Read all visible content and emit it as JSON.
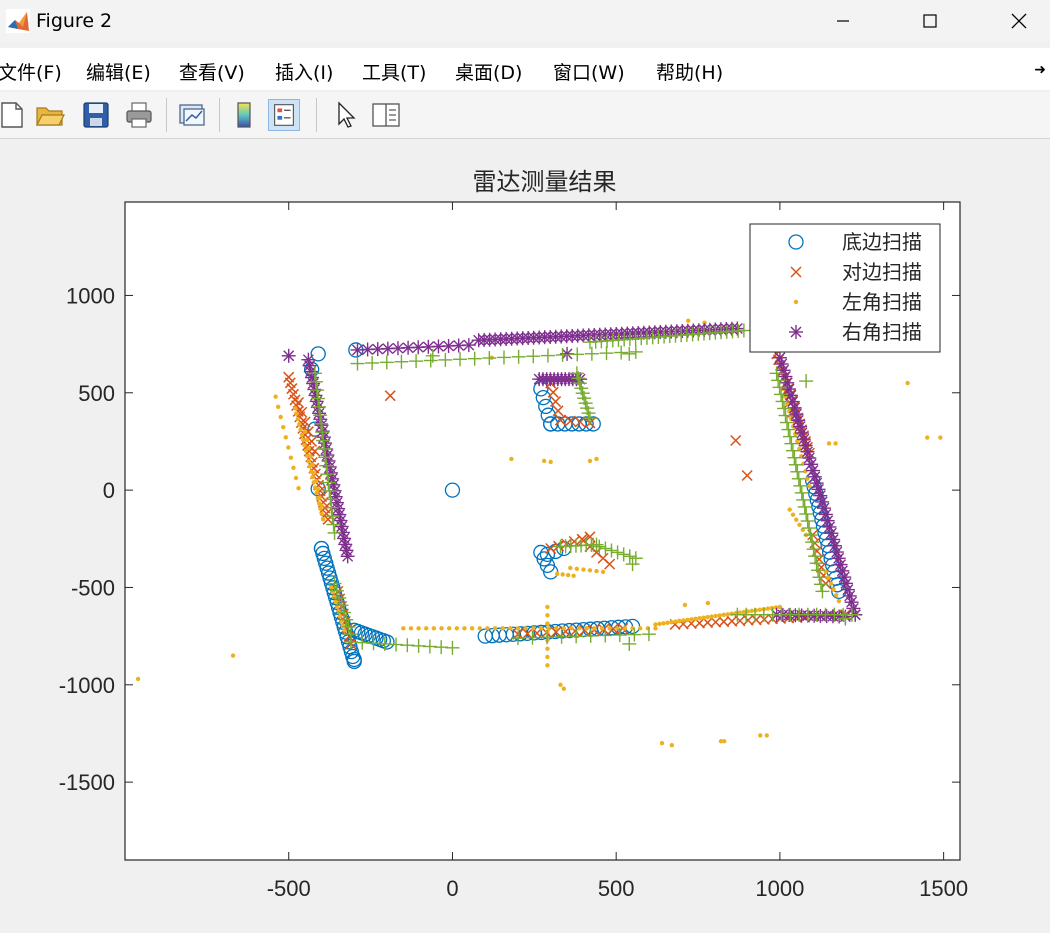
{
  "window": {
    "title": "Figure 2",
    "controls": [
      "minimize",
      "maximize",
      "close"
    ]
  },
  "menu": {
    "items": [
      "文件(F)",
      "编辑(E)",
      "查看(V)",
      "插入(I)",
      "工具(T)",
      "桌面(D)",
      "窗口(W)",
      "帮助(H)"
    ],
    "overflow_icon": "pin-arrow-icon"
  },
  "toolbar": {
    "buttons": [
      {
        "name": "new-figure",
        "icon": "new-file-icon"
      },
      {
        "name": "open-file",
        "icon": "folder-open-icon"
      },
      {
        "name": "save-figure",
        "icon": "floppy-disk-icon"
      },
      {
        "name": "print-figure",
        "icon": "printer-icon"
      },
      {
        "name": "link-plot",
        "icon": "link-plot-icon"
      },
      {
        "name": "insert-colorbar",
        "icon": "colorbar-icon"
      },
      {
        "name": "insert-legend",
        "icon": "legend-icon",
        "active": true
      },
      {
        "name": "edit-plot",
        "icon": "pointer-arrow-icon"
      },
      {
        "name": "property-inspector",
        "icon": "property-panel-icon"
      }
    ]
  },
  "chart_data": {
    "type": "scatter",
    "title": "雷达测量结果",
    "xlabel": "",
    "ylabel": "",
    "xlim": [
      -1000,
      1550
    ],
    "ylim": [
      -1900,
      1480
    ],
    "xticks": [
      -500,
      0,
      500,
      1000,
      1500
    ],
    "yticks": [
      1000,
      500,
      0,
      -500,
      -1000,
      -1500
    ],
    "grid": false,
    "legend_position": "top-right",
    "colors": {
      "axis": "#262626",
      "plot_bg": "#ffffff",
      "figure_bg": "#f0f0f0"
    },
    "series": [
      {
        "name": "底边扫描",
        "marker": "circle",
        "color": "#0072BD",
        "segments": [
          {
            "from": [
              -300,
              -880
            ],
            "to": [
              -400,
              -300
            ],
            "n": 24
          },
          {
            "from": [
              -400,
              -300
            ],
            "to": [
              -430,
              620
            ],
            "n": 4
          },
          {
            "from": [
              -300,
              -720
            ],
            "to": [
              -200,
              -780
            ],
            "n": 10
          },
          {
            "from": [
              100,
              -750
            ],
            "to": [
              550,
              -700
            ],
            "n": 22
          },
          {
            "from": [
              270,
              520
            ],
            "to": [
              300,
              340
            ],
            "n": 5
          },
          {
            "from": [
              300,
              340
            ],
            "to": [
              430,
              340
            ],
            "n": 7
          },
          {
            "from": [
              270,
              -320
            ],
            "to": [
              300,
              -420
            ],
            "n": 4
          },
          {
            "from": [
              290,
              -330
            ],
            "to": [
              340,
              -300
            ],
            "n": 3
          },
          {
            "from": [
              1100,
              50
            ],
            "to": [
              1180,
              -520
            ],
            "n": 18
          }
        ],
        "points": [
          [
            -410,
            700
          ],
          [
            -295,
            720
          ],
          [
            0,
            0
          ],
          [
            -300,
            -870
          ]
        ]
      },
      {
        "name": "对边扫描",
        "marker": "x",
        "color": "#D95319",
        "segments": [
          {
            "from": [
              -500,
              580
            ],
            "to": [
              -380,
              -150
            ],
            "n": 26
          },
          {
            "from": [
              -470,
              450
            ],
            "to": [
              -420,
              200
            ],
            "n": 6
          },
          {
            "from": [
              -350,
              -520
            ],
            "to": [
              -310,
              -790
            ],
            "n": 8
          },
          {
            "from": [
              200,
              -740
            ],
            "to": [
              520,
              -710
            ],
            "n": 12
          },
          {
            "from": [
              300,
              550
            ],
            "to": [
              330,
              360
            ],
            "n": 5
          },
          {
            "from": [
              330,
              360
            ],
            "to": [
              420,
              345
            ],
            "n": 4
          },
          {
            "from": [
              300,
              -300
            ],
            "to": [
              420,
              -240
            ],
            "n": 6
          },
          {
            "from": [
              400,
              -260
            ],
            "to": [
              480,
              -380
            ],
            "n": 5
          },
          {
            "from": [
              680,
              -690
            ],
            "to": [
              1200,
              -640
            ],
            "n": 22
          },
          {
            "from": [
              990,
              700
            ],
            "to": [
              1090,
              190
            ],
            "n": 18
          },
          {
            "from": [
              1020,
              500
            ],
            "to": [
              1060,
              300
            ],
            "n": 5
          },
          {
            "from": [
              1100,
              -230
            ],
            "to": [
              1140,
              -480
            ],
            "n": 7
          }
        ],
        "points": [
          [
            -190,
            485
          ],
          [
            865,
            255
          ],
          [
            900,
            75
          ]
        ]
      },
      {
        "name": "左角扫描",
        "marker": "dot",
        "color": "#EDB120",
        "segments": [
          {
            "from": [
              -540,
              480
            ],
            "to": [
              -470,
              10
            ],
            "n": 10
          },
          {
            "from": [
              -480,
              420
            ],
            "to": [
              -395,
              -150
            ],
            "n": 22
          },
          {
            "from": [
              -450,
              300
            ],
            "to": [
              -400,
              -80
            ],
            "n": 10
          },
          {
            "from": [
              -370,
              -500
            ],
            "to": [
              -330,
              -720
            ],
            "n": 10
          },
          {
            "from": [
              -150,
              -710
            ],
            "to": [
              620,
              -710
            ],
            "n": 34
          },
          {
            "from": [
              620,
              -690
            ],
            "to": [
              1000,
              -600
            ],
            "n": 32
          },
          {
            "from": [
              290,
              -600
            ],
            "to": [
              290,
              -900
            ],
            "n": 8
          },
          {
            "from": [
              360,
              -400
            ],
            "to": [
              460,
              -420
            ],
            "n": 6
          },
          {
            "from": [
              320,
              -430
            ],
            "to": [
              370,
              -440
            ],
            "n": 4
          },
          {
            "from": [
              1010,
              520
            ],
            "to": [
              1090,
              20
            ],
            "n": 14
          },
          {
            "from": [
              1030,
              -100
            ],
            "to": [
              1080,
              -230
            ],
            "n": 6
          },
          {
            "from": [
              1140,
              -420
            ],
            "to": [
              1180,
              -570
            ],
            "n": 6
          }
        ],
        "points": [
          [
            -960,
            -970
          ],
          [
            -670,
            -850
          ],
          [
            280,
            150
          ],
          [
            300,
            145
          ],
          [
            420,
            150
          ],
          [
            440,
            160
          ],
          [
            330,
            -1000
          ],
          [
            340,
            -1020
          ],
          [
            640,
            -1300
          ],
          [
            670,
            -1310
          ],
          [
            820,
            -1290
          ],
          [
            830,
            -1290
          ],
          [
            940,
            -1260
          ],
          [
            960,
            -1260
          ],
          [
            1390,
            550
          ],
          [
            1450,
            270
          ],
          [
            1490,
            270
          ],
          [
            770,
            820
          ],
          [
            720,
            870
          ],
          [
            770,
            860
          ],
          [
            710,
            -590
          ],
          [
            780,
            -580
          ],
          [
            1110,
            760
          ],
          [
            1150,
            240
          ],
          [
            1170,
            240
          ],
          [
            120,
            680
          ],
          [
            180,
            160
          ]
        ]
      },
      {
        "name": "右角扫描",
        "marker": "asterisk",
        "color": "#7E2F8E",
        "segments": [
          {
            "from": [
              -290,
              720
            ],
            "to": [
              50,
              745
            ],
            "n": 12
          },
          {
            "from": [
              80,
              770
            ],
            "to": [
              870,
              830
            ],
            "n": 48
          },
          {
            "from": [
              -440,
              670
            ],
            "to": [
              -320,
              -340
            ],
            "n": 34
          },
          {
            "from": [
              265,
              570
            ],
            "to": [
              390,
              570
            ],
            "n": 12
          },
          {
            "from": [
              1000,
              680
            ],
            "to": [
              1230,
              -640
            ],
            "n": 42
          },
          {
            "from": [
              990,
              -640
            ],
            "to": [
              1200,
              -650
            ],
            "n": 12
          }
        ],
        "points": [
          [
            -500,
            690
          ],
          [
            350,
            700
          ],
          [
            1230,
            -640
          ]
        ]
      },
      {
        "name": "",
        "marker": "plus",
        "color": "#77AC30",
        "segments": [
          {
            "from": [
              -290,
              650
            ],
            "to": [
              560,
              710
            ],
            "n": 20
          },
          {
            "from": [
              420,
              760
            ],
            "to": [
              890,
              820
            ],
            "n": 28
          },
          {
            "from": [
              -420,
              600
            ],
            "to": [
              -360,
              -220
            ],
            "n": 20
          },
          {
            "from": [
              -360,
              -480
            ],
            "to": [
              -310,
              -740
            ],
            "n": 8
          },
          {
            "from": [
              -310,
              -780
            ],
            "to": [
              0,
              -810
            ],
            "n": 10
          },
          {
            "from": [
              380,
              600
            ],
            "to": [
              420,
              370
            ],
            "n": 10
          },
          {
            "from": [
              330,
              -290
            ],
            "to": [
              440,
              -280
            ],
            "n": 8
          },
          {
            "from": [
              430,
              -280
            ],
            "to": [
              560,
              -350
            ],
            "n": 8
          },
          {
            "from": [
              990,
              600
            ],
            "to": [
              1130,
              -520
            ],
            "n": 32
          },
          {
            "from": [
              870,
              -640
            ],
            "to": [
              1220,
              -640
            ],
            "n": 14
          },
          {
            "from": [
              200,
              -760
            ],
            "to": [
              600,
              -740
            ],
            "n": 10
          }
        ],
        "points": [
          [
            -60,
            690
          ],
          [
            540,
            700
          ],
          [
            550,
            -380
          ],
          [
            1080,
            560
          ],
          [
            1200,
            -660
          ],
          [
            540,
            -790
          ]
        ]
      }
    ]
  }
}
